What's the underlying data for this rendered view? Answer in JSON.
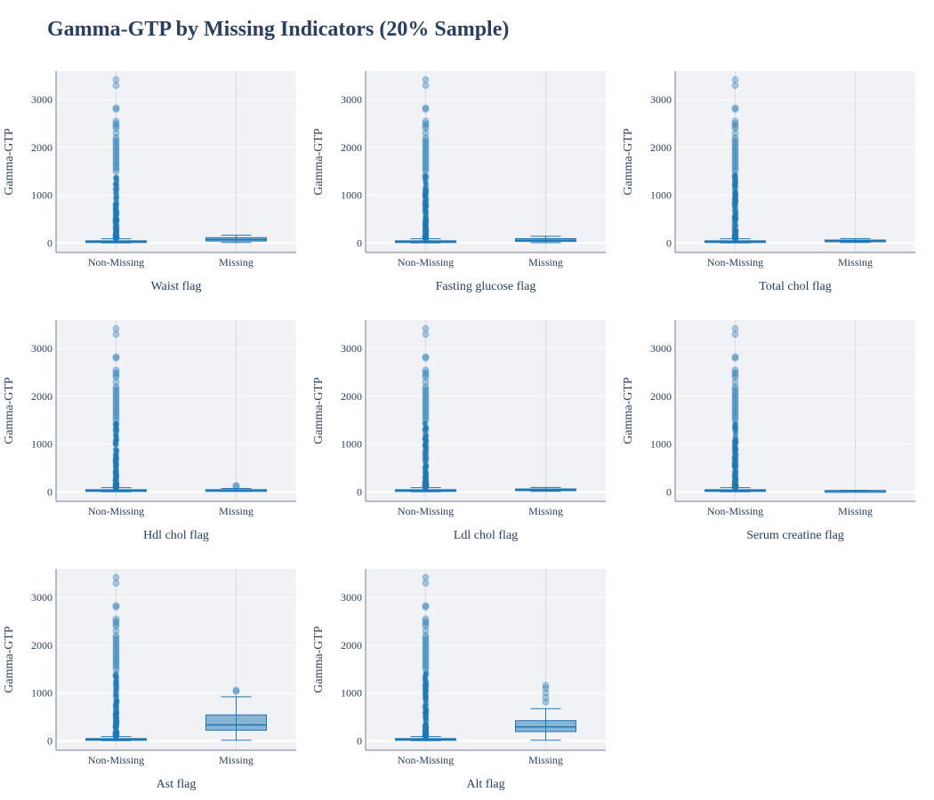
{
  "chart_data": {
    "type": "box",
    "title": "Gamma-GTP by Missing Indicators (20% Sample)",
    "ylabel": "Gamma-GTP",
    "ylim": [
      -200,
      3600
    ],
    "y_ticks": [
      0,
      1000,
      2000,
      3000
    ],
    "categories": [
      "Non-Missing",
      "Missing"
    ],
    "grid": true,
    "colors": {
      "box_line": "#1f77b4",
      "box_fill": "rgba(31,119,180,0.5)",
      "plot_bg": "#f0f2f5",
      "grid": "#ffffff",
      "axis_text": "#2a3f5f",
      "axis_line": "#6e7f94"
    },
    "panels": [
      {
        "xlabel": "Waist flag",
        "boxes": [
          {
            "category": "Non-Missing",
            "min": 1,
            "q1": 17,
            "median": 26,
            "q3": 45,
            "max": 87,
            "outlier_range": [
              90,
              1450
            ],
            "outliers": [
              1500,
              1550,
              1600,
              1650,
              1700,
              1750,
              1800,
              1850,
              1900,
              1950,
              2000,
              2050,
              2100,
              2150,
              2200,
              2300,
              2400,
              2450,
              2500,
              2550,
              2800,
              2830,
              3300,
              3420
            ]
          },
          {
            "category": "Missing",
            "min": 10,
            "q1": 40,
            "median": 70,
            "q3": 110,
            "max": 160,
            "outliers": []
          }
        ]
      },
      {
        "xlabel": "Fasting glucose flag",
        "boxes": [
          {
            "category": "Non-Missing",
            "min": 1,
            "q1": 17,
            "median": 26,
            "q3": 45,
            "max": 87,
            "outlier_range": [
              90,
              1450
            ],
            "outliers": [
              1500,
              1550,
              1600,
              1650,
              1700,
              1750,
              1800,
              1850,
              1900,
              1950,
              2000,
              2050,
              2100,
              2150,
              2200,
              2300,
              2400,
              2450,
              2500,
              2550,
              2800,
              2830,
              3300,
              3420
            ]
          },
          {
            "category": "Missing",
            "min": 5,
            "q1": 30,
            "median": 55,
            "q3": 90,
            "max": 140,
            "outliers": []
          }
        ]
      },
      {
        "xlabel": "Total chol flag",
        "boxes": [
          {
            "category": "Non-Missing",
            "min": 1,
            "q1": 17,
            "median": 26,
            "q3": 45,
            "max": 87,
            "outlier_range": [
              90,
              1450
            ],
            "outliers": [
              1500,
              1550,
              1600,
              1650,
              1700,
              1750,
              1800,
              1850,
              1900,
              1950,
              2000,
              2050,
              2100,
              2150,
              2200,
              2300,
              2400,
              2450,
              2500,
              2550,
              2800,
              2830,
              3300,
              3420
            ]
          },
          {
            "category": "Missing",
            "min": 10,
            "q1": 25,
            "median": 40,
            "q3": 60,
            "max": 90,
            "outliers": []
          }
        ]
      },
      {
        "xlabel": "Hdl chol flag",
        "boxes": [
          {
            "category": "Non-Missing",
            "min": 1,
            "q1": 17,
            "median": 26,
            "q3": 45,
            "max": 87,
            "outlier_range": [
              90,
              1450
            ],
            "outliers": [
              1500,
              1550,
              1600,
              1650,
              1700,
              1750,
              1800,
              1850,
              1900,
              1950,
              2000,
              2050,
              2100,
              2150,
              2200,
              2300,
              2400,
              2450,
              2500,
              2550,
              2800,
              2830,
              3300,
              3420
            ]
          },
          {
            "category": "Missing",
            "min": 10,
            "q1": 20,
            "median": 30,
            "q3": 45,
            "max": 70,
            "outliers": [
              110,
              130
            ]
          }
        ]
      },
      {
        "xlabel": "Ldl chol flag",
        "boxes": [
          {
            "category": "Non-Missing",
            "min": 1,
            "q1": 17,
            "median": 26,
            "q3": 45,
            "max": 87,
            "outlier_range": [
              90,
              1450
            ],
            "outliers": [
              1500,
              1550,
              1600,
              1650,
              1700,
              1750,
              1800,
              1850,
              1900,
              1950,
              2000,
              2050,
              2100,
              2150,
              2200,
              2300,
              2400,
              2450,
              2500,
              2550,
              2800,
              2830,
              3300,
              3420
            ]
          },
          {
            "category": "Missing",
            "min": 10,
            "q1": 25,
            "median": 40,
            "q3": 60,
            "max": 90,
            "outliers": []
          }
        ]
      },
      {
        "xlabel": "Serum creatine flag",
        "boxes": [
          {
            "category": "Non-Missing",
            "min": 1,
            "q1": 17,
            "median": 26,
            "q3": 45,
            "max": 87,
            "outlier_range": [
              90,
              1450
            ],
            "outliers": [
              1500,
              1550,
              1600,
              1650,
              1700,
              1750,
              1800,
              1850,
              1900,
              1950,
              2000,
              2050,
              2100,
              2150,
              2200,
              2300,
              2400,
              2450,
              2500,
              2550,
              2800,
              2830,
              3300,
              3420
            ]
          },
          {
            "category": "Missing",
            "min": 15,
            "q1": 18,
            "median": 22,
            "q3": 26,
            "max": 30,
            "outliers": []
          }
        ]
      },
      {
        "xlabel": "Ast flag",
        "boxes": [
          {
            "category": "Non-Missing",
            "min": 1,
            "q1": 17,
            "median": 26,
            "q3": 45,
            "max": 87,
            "outlier_range": [
              90,
              1450
            ],
            "outliers": [
              1500,
              1550,
              1600,
              1650,
              1700,
              1750,
              1800,
              1850,
              1900,
              1950,
              2000,
              2050,
              2100,
              2150,
              2200,
              2300,
              2400,
              2450,
              2500,
              2550,
              2800,
              2830,
              3300,
              3420
            ]
          },
          {
            "category": "Missing",
            "min": 10,
            "q1": 220,
            "median": 330,
            "q3": 540,
            "max": 920,
            "outliers": [
              1030,
              1060
            ]
          }
        ]
      },
      {
        "xlabel": "Alt flag",
        "boxes": [
          {
            "category": "Non-Missing",
            "min": 1,
            "q1": 17,
            "median": 26,
            "q3": 45,
            "max": 87,
            "outlier_range": [
              90,
              1450
            ],
            "outliers": [
              1500,
              1550,
              1600,
              1650,
              1700,
              1750,
              1800,
              1850,
              1900,
              1950,
              2000,
              2050,
              2100,
              2150,
              2200,
              2300,
              2400,
              2450,
              2500,
              2550,
              2800,
              2830,
              3300,
              3420
            ]
          },
          {
            "category": "Missing",
            "min": 10,
            "q1": 190,
            "median": 290,
            "q3": 420,
            "max": 670,
            "outliers": [
              810,
              900,
              1000,
              1100,
              1160
            ]
          }
        ]
      }
    ]
  }
}
